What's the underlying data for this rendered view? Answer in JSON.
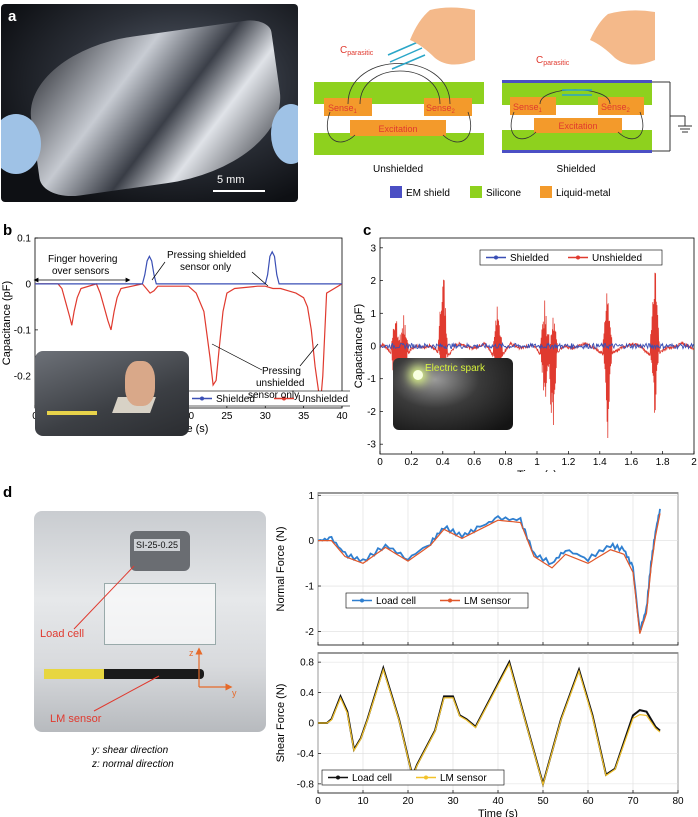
{
  "panels": {
    "a": {
      "label": "a",
      "scale_bar": "5 mm",
      "diagram_left_caption": "Unshielded",
      "diagram_right_caption": "Shielded",
      "c_parasitic_base": "C",
      "c_parasitic_sub": "parasitic",
      "sense_left": "Sense",
      "sense_left_sub": "1",
      "sense_right": "Sense",
      "sense_right_sub": "2",
      "excitation": "Excitation",
      "legend": [
        {
          "label": "EM shield",
          "color": "#4b4fc4"
        },
        {
          "label": "Silicone",
          "color": "#8ed11e"
        },
        {
          "label": "Liquid-metal",
          "color": "#f39a2b"
        }
      ]
    },
    "b": {
      "label": "b"
    },
    "c": {
      "label": "c",
      "inset_label": "Electric spark"
    },
    "d": {
      "label": "d",
      "sensor_tag": "SI-25-0.25",
      "load_cell_label": "Load cell",
      "lm_sensor_label": "LM sensor",
      "axis_z": "z",
      "axis_y": "y",
      "caption_y": "y: shear direction",
      "caption_z": "z: normal direction"
    }
  },
  "chart_data": [
    {
      "id": "b",
      "type": "line",
      "xlabel": "Time (s)",
      "ylabel": "Capacitance (pF)",
      "xlim": [
        0,
        40
      ],
      "ylim": [
        -0.27,
        0.1
      ],
      "xticks": [
        0,
        5,
        10,
        15,
        20,
        25,
        30,
        35,
        40
      ],
      "yticks": [
        0.1,
        0,
        -0.1,
        -0.2
      ],
      "ytick_labels": [
        "0.1",
        "0",
        "-0.1",
        "-0.2"
      ],
      "grid": false,
      "legend_position": "bottom-right",
      "annotations": [
        {
          "text": "Finger hovering",
          "text2": "over sensors"
        },
        {
          "text": "Pressing shielded",
          "text2": "sensor only"
        },
        {
          "text": "Pressing",
          "text2": "unshielded",
          "text3": "sensor only"
        }
      ],
      "series": [
        {
          "name": "Shielded",
          "color": "#3a4fb5",
          "x": [
            0,
            14,
            14.3,
            14.6,
            14.9,
            15.2,
            15.5,
            15.8,
            30,
            30.3,
            30.6,
            30.9,
            31.2,
            31.5,
            31.8,
            40
          ],
          "y": [
            0,
            0,
            0.02,
            0.05,
            0.06,
            0.05,
            0.02,
            0,
            0,
            0.02,
            0.06,
            0.07,
            0.06,
            0.02,
            0,
            0
          ]
        },
        {
          "name": "Unshielded",
          "color": "#e03a2f",
          "x": [
            0,
            3,
            3.5,
            4,
            4.5,
            4.8,
            5.1,
            5.5,
            6,
            8,
            8.5,
            9,
            9.5,
            9.9,
            10.3,
            10.7,
            11.2,
            14,
            14.5,
            15,
            15.5,
            16,
            20,
            21,
            22,
            22.8,
            23.2,
            23.6,
            24,
            24.5,
            25,
            26,
            29,
            30,
            31,
            32,
            33,
            34,
            35,
            35.5,
            36,
            36.5,
            37,
            37.2,
            37.5,
            38,
            40
          ],
          "y": [
            0,
            0,
            -0.01,
            -0.04,
            -0.07,
            -0.09,
            -0.06,
            -0.03,
            -0.01,
            0,
            -0.02,
            -0.05,
            -0.08,
            -0.1,
            -0.06,
            -0.03,
            -0.01,
            0,
            -0.01,
            -0.02,
            -0.015,
            -0.005,
            -0.005,
            -0.02,
            -0.06,
            -0.16,
            -0.22,
            -0.21,
            -0.14,
            -0.06,
            -0.02,
            -0.01,
            -0.005,
            -0.005,
            -0.01,
            -0.01,
            -0.015,
            -0.02,
            -0.03,
            -0.05,
            -0.1,
            -0.18,
            -0.24,
            -0.26,
            -0.2,
            -0.02,
            0
          ]
        }
      ]
    },
    {
      "id": "c",
      "type": "line",
      "xlabel": "Time (s)",
      "ylabel": "Capacitance (pF)",
      "xlim": [
        0,
        2
      ],
      "ylim": [
        -3.3,
        3.3
      ],
      "xticks": [
        0,
        0.2,
        0.4,
        0.6,
        0.8,
        1,
        1.2,
        1.4,
        1.6,
        1.8,
        2
      ],
      "xtick_labels": [
        "0",
        "0.2",
        "0.4",
        "0.6",
        "0.8",
        "1",
        "1.2",
        "1.4",
        "1.6",
        "1.8",
        "2"
      ],
      "yticks": [
        3,
        2,
        1,
        0,
        -1,
        -2,
        -3
      ],
      "grid": false,
      "legend_position": "top-center",
      "series": [
        {
          "name": "Shielded",
          "color": "#3a4fb5",
          "noise_amplitude": 0.08
        },
        {
          "name": "Unshielded",
          "color": "#e03a2f",
          "bursts": [
            {
              "t": 0.1,
              "up": 1.4,
              "down": -1.6
            },
            {
              "t": 0.15,
              "up": 1.2,
              "down": -2.3
            },
            {
              "t": 0.4,
              "up": 3.0,
              "down": -1.6
            },
            {
              "t": 0.75,
              "up": 1.5,
              "down": -2.2
            },
            {
              "t": 1.05,
              "up": 1.7,
              "down": -1.7
            },
            {
              "t": 1.1,
              "up": 1.3,
              "down": -2.8
            },
            {
              "t": 1.45,
              "up": 2.0,
              "down": -3.0
            },
            {
              "t": 1.75,
              "up": 3.0,
              "down": -2.3
            }
          ]
        }
      ]
    },
    {
      "id": "d-normal",
      "type": "line",
      "ylabel": "Normal Force (N)",
      "xlim": [
        0,
        80
      ],
      "ylim": [
        -2.3,
        1.05
      ],
      "yticks": [
        1,
        0,
        -1,
        -2
      ],
      "xticks": [
        0,
        10,
        20,
        30,
        40,
        50,
        60,
        70,
        80
      ],
      "grid": true,
      "legend_position": "bottom-left",
      "series": [
        {
          "name": "Load cell",
          "color": "#2f7fd0",
          "x": [
            0,
            3,
            6,
            10,
            15,
            20,
            25,
            28,
            32,
            36,
            40,
            45,
            48,
            52,
            55,
            60,
            65,
            68,
            70,
            71.5,
            73,
            74,
            75,
            76
          ],
          "y": [
            0,
            0.05,
            -0.3,
            -0.45,
            -0.1,
            -0.4,
            -0.05,
            0.3,
            0.1,
            0.3,
            0.5,
            0.45,
            -0.3,
            -0.5,
            -0.2,
            -0.4,
            -0.1,
            -0.2,
            -0.6,
            -2.0,
            -1.5,
            -0.5,
            0.2,
            0.7
          ]
        },
        {
          "name": "LM sensor",
          "color": "#e0572a",
          "x": [
            0,
            3,
            6,
            10,
            15,
            20,
            25,
            28,
            32,
            36,
            40,
            45,
            48,
            52,
            55,
            60,
            65,
            68,
            70,
            71.5,
            73,
            74,
            75,
            76
          ],
          "y": [
            0,
            0.0,
            -0.35,
            -0.5,
            -0.15,
            -0.45,
            -0.1,
            0.25,
            0.05,
            0.25,
            0.45,
            0.4,
            -0.35,
            -0.6,
            -0.3,
            -0.5,
            -0.2,
            -0.3,
            -0.7,
            -2.05,
            -1.6,
            -0.6,
            0.1,
            0.6
          ]
        }
      ]
    },
    {
      "id": "d-shear",
      "type": "line",
      "xlabel": "Time (s)",
      "ylabel": "Shear Force (N)",
      "xlim": [
        0,
        80
      ],
      "ylim": [
        -0.92,
        0.92
      ],
      "yticks": [
        0.8,
        0.4,
        0,
        -0.4,
        -0.8
      ],
      "ytick_labels": [
        "0.8",
        "0.4",
        "0",
        "-0.4",
        "-0.8"
      ],
      "xticks": [
        0,
        10,
        20,
        30,
        40,
        50,
        60,
        70,
        80
      ],
      "grid": true,
      "legend_position": "bottom-left",
      "series": [
        {
          "name": "Load cell",
          "color": "#111111",
          "x": [
            0,
            2,
            3,
            5,
            6.5,
            8,
            9.5,
            11,
            14.5,
            18,
            21,
            22,
            26,
            28,
            30,
            31.5,
            33,
            35,
            42.5,
            46,
            50,
            54,
            58,
            61,
            64,
            66,
            70,
            71.5,
            73,
            75,
            76
          ],
          "y": [
            0,
            0,
            0.05,
            0.35,
            0.15,
            -0.35,
            -0.2,
            0.05,
            0.72,
            0.05,
            -0.7,
            -0.55,
            -0.1,
            0.35,
            0.35,
            0.1,
            0.05,
            -0.05,
            0.8,
            0.05,
            -0.8,
            0.05,
            0.7,
            0.1,
            -0.68,
            -0.6,
            0.1,
            0.17,
            0.15,
            -0.05,
            -0.1
          ]
        },
        {
          "name": "LM sensor",
          "color": "#f2c22b",
          "x": [
            0,
            2,
            3,
            5,
            6.5,
            8,
            9.5,
            11,
            14.5,
            18,
            21,
            22,
            26,
            28,
            30,
            31.5,
            33,
            35,
            42.5,
            46,
            50,
            54,
            58,
            61,
            64,
            66,
            70,
            71.5,
            73,
            75,
            76
          ],
          "y": [
            0,
            0,
            0.04,
            0.33,
            0.13,
            -0.36,
            -0.21,
            0.04,
            0.7,
            0.04,
            -0.71,
            -0.56,
            -0.11,
            0.33,
            0.33,
            0.09,
            0.04,
            -0.06,
            0.78,
            0.04,
            -0.81,
            0.04,
            0.68,
            0.08,
            -0.69,
            -0.61,
            0.06,
            0.11,
            0.1,
            -0.07,
            -0.12
          ]
        }
      ]
    }
  ]
}
